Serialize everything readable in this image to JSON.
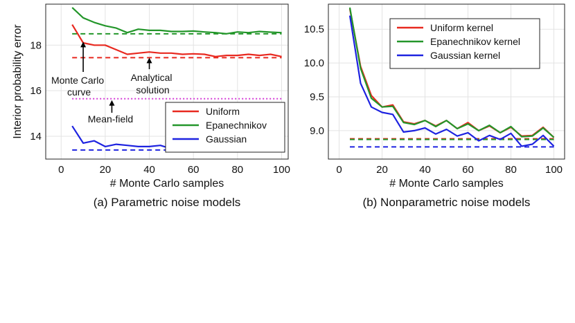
{
  "chart_data": [
    {
      "type": "line",
      "caption": "(a) Parametric noise models",
      "xlabel": "# Monte Carlo samples",
      "ylabel": "Interior probability error",
      "xlim": [
        -7,
        103
      ],
      "ylim": [
        13.0,
        19.8
      ],
      "xticks": [
        "0",
        "20",
        "40",
        "60",
        "80",
        "100"
      ],
      "xtick_values": [
        0,
        20,
        40,
        60,
        80,
        100
      ],
      "yticks": [
        "14",
        "16",
        "18"
      ],
      "ytick_values": [
        14,
        16,
        18
      ],
      "grid": true,
      "legend": [
        "Uniform",
        "Epanechnikov",
        "Gaussian"
      ],
      "legend_position": "lower-right",
      "x": [
        5,
        10,
        15,
        20,
        25,
        30,
        35,
        40,
        45,
        50,
        55,
        60,
        65,
        70,
        75,
        80,
        85,
        90,
        95,
        100
      ],
      "series": [
        {
          "name": "Uniform",
          "color": "#e8281f",
          "values": [
            18.9,
            18.1,
            18.0,
            18.0,
            17.8,
            17.6,
            17.65,
            17.7,
            17.65,
            17.65,
            17.6,
            17.62,
            17.6,
            17.5,
            17.55,
            17.55,
            17.6,
            17.55,
            17.6,
            17.5
          ]
        },
        {
          "name": "Epanechnikov",
          "color": "#23962a",
          "values": [
            19.65,
            19.2,
            19.0,
            18.85,
            18.75,
            18.55,
            18.7,
            18.65,
            18.65,
            18.6,
            18.6,
            18.62,
            18.58,
            18.55,
            18.5,
            18.58,
            18.55,
            18.6,
            18.57,
            18.55
          ]
        },
        {
          "name": "Gaussian",
          "color": "#1d22e0",
          "values": [
            14.45,
            13.7,
            13.8,
            13.55,
            13.65,
            13.6,
            13.55,
            13.55,
            13.6,
            13.45,
            13.5,
            13.35,
            13.45,
            13.5,
            13.45,
            13.5,
            13.45,
            13.4,
            13.5,
            13.45
          ]
        }
      ],
      "reference_lines": [
        {
          "name": "Analytical Epanechnikov",
          "value": 18.5,
          "color": "#23962a",
          "style": "dashed"
        },
        {
          "name": "Analytical Uniform",
          "value": 17.45,
          "color": "#e8281f",
          "style": "dashed"
        },
        {
          "name": "Mean-field",
          "value": 15.65,
          "color": "#d43ad6",
          "style": "dotted"
        },
        {
          "name": "Analytical Gaussian",
          "value": 13.4,
          "color": "#1d22e0",
          "style": "dashed"
        }
      ],
      "annotations": [
        {
          "lines": [
            "Monte Carlo",
            "curve"
          ],
          "points_to_x": 10
        },
        {
          "lines": [
            "Analytical",
            "solution"
          ],
          "points_to_x": 40
        },
        {
          "lines": [
            "Mean-field"
          ],
          "points_to_x": 23
        }
      ]
    },
    {
      "type": "line",
      "caption": "(b) Nonparametric noise models",
      "xlabel": "# Monte Carlo samples",
      "ylabel": "",
      "xlim": [
        -5,
        105
      ],
      "ylim": [
        8.58,
        10.87
      ],
      "xticks": [
        "0",
        "20",
        "40",
        "60",
        "80",
        "100"
      ],
      "xtick_values": [
        0,
        20,
        40,
        60,
        80,
        100
      ],
      "yticks": [
        "9.0",
        "9.5",
        "10.0",
        "10.5"
      ],
      "ytick_values": [
        9.0,
        9.5,
        10.0,
        10.5
      ],
      "grid": true,
      "legend": [
        "Uniform kernel",
        "Epanechnikov kernel",
        "Gaussian kernel"
      ],
      "legend_position": "top-right",
      "x": [
        5,
        10,
        15,
        20,
        25,
        30,
        35,
        40,
        45,
        50,
        55,
        60,
        65,
        70,
        75,
        80,
        85,
        90,
        95,
        100
      ],
      "series": [
        {
          "name": "Uniform kernel",
          "color": "#e8281f",
          "values": [
            10.8,
            9.95,
            9.52,
            9.35,
            9.38,
            9.13,
            9.1,
            9.15,
            9.07,
            9.15,
            9.03,
            9.12,
            9.0,
            9.07,
            8.97,
            9.05,
            8.92,
            8.93,
            9.05,
            8.9
          ]
        },
        {
          "name": "Epanechnikov kernel",
          "color": "#23962a",
          "values": [
            10.82,
            9.92,
            9.48,
            9.35,
            9.36,
            9.12,
            9.09,
            9.15,
            9.06,
            9.15,
            9.03,
            9.1,
            9.0,
            9.08,
            8.97,
            9.06,
            8.91,
            8.92,
            9.04,
            8.9
          ]
        },
        {
          "name": "Gaussian kernel",
          "color": "#1d22e0",
          "values": [
            10.7,
            9.7,
            9.35,
            9.27,
            9.24,
            8.98,
            9.0,
            9.04,
            8.95,
            9.02,
            8.92,
            8.97,
            8.85,
            8.93,
            8.87,
            8.96,
            8.77,
            8.8,
            8.93,
            8.77
          ]
        }
      ],
      "reference_lines": [
        {
          "name": "Analytical Uniform kernel",
          "value": 8.88,
          "color": "#e8281f",
          "style": "dashed"
        },
        {
          "name": "Analytical Epanechnikov kernel",
          "value": 8.87,
          "color": "#23962a",
          "style": "dashed"
        },
        {
          "name": "Analytical Gaussian kernel",
          "value": 8.76,
          "color": "#1d22e0",
          "style": "dashed"
        }
      ]
    }
  ]
}
